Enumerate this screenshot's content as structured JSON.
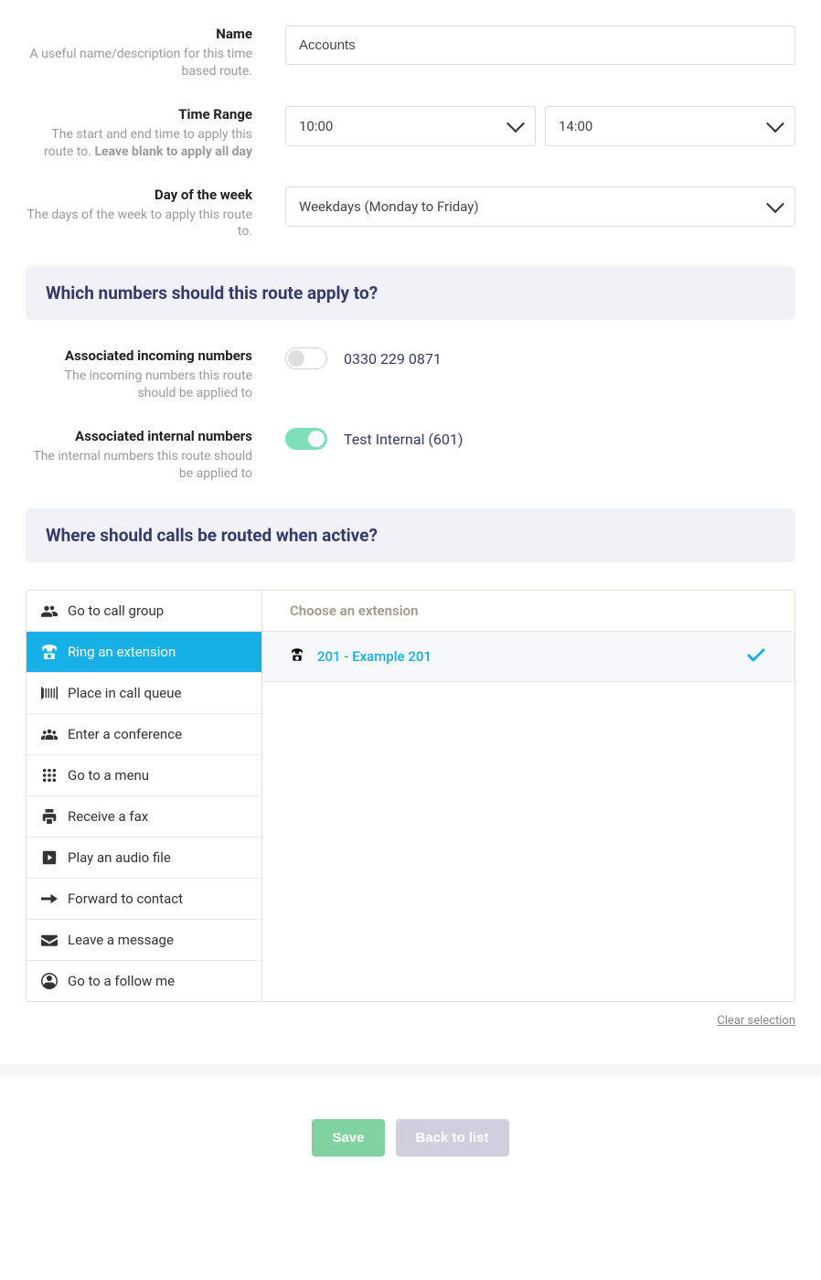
{
  "colors": {
    "section_bg": "#f1f2f8",
    "section_text": "#363a6a",
    "active_bg": "#16b0e7",
    "toggle_on": "#7de0b8",
    "btn_save": "#7ed3a1",
    "btn_back": "#cfd0de",
    "hint_text": "#9a9a9a",
    "border": "#dcdcdc"
  },
  "fields": {
    "name": {
      "label": "Name",
      "hint": "A useful name/description for this time based route.",
      "value": "Accounts"
    },
    "time_range": {
      "label": "Time Range",
      "hint_prefix": "The start and end time to apply this route to. ",
      "hint_bold": "Leave blank to apply all day",
      "start": "10:00",
      "end": "14:00"
    },
    "day_of_week": {
      "label": "Day of the week",
      "hint": "The days of the week to apply this route to.",
      "value": "Weekdays (Monday to Friday)"
    }
  },
  "sections": {
    "numbers_title": "Which numbers should this route apply to?",
    "routing_title": "Where should calls be routed when active?"
  },
  "incoming_numbers": {
    "label": "Associated incoming numbers",
    "hint": "The incoming numbers this route should be applied to",
    "items": [
      {
        "label": "0330 229 0871",
        "on": false
      }
    ]
  },
  "internal_numbers": {
    "label": "Associated internal numbers",
    "hint": "The internal numbers this route should be applied to",
    "items": [
      {
        "label": "Test Internal (601)",
        "on": true
      }
    ]
  },
  "routing_options": [
    {
      "key": "call-group",
      "label": "Go to call group",
      "active": false
    },
    {
      "key": "extension",
      "label": "Ring an extension",
      "active": true
    },
    {
      "key": "queue",
      "label": "Place in call queue",
      "active": false
    },
    {
      "key": "conference",
      "label": "Enter a conference",
      "active": false
    },
    {
      "key": "menu",
      "label": "Go to a menu",
      "active": false
    },
    {
      "key": "fax",
      "label": "Receive a fax",
      "active": false
    },
    {
      "key": "audio",
      "label": "Play an audio file",
      "active": false
    },
    {
      "key": "forward",
      "label": "Forward to contact",
      "active": false
    },
    {
      "key": "message",
      "label": "Leave a message",
      "active": false
    },
    {
      "key": "followme",
      "label": "Go to a follow me",
      "active": false
    }
  ],
  "extension_picker": {
    "header": "Choose an extension",
    "selected": "201 - Example 201"
  },
  "clear_selection": "Clear selection",
  "buttons": {
    "save": "Save",
    "back": "Back to list"
  }
}
